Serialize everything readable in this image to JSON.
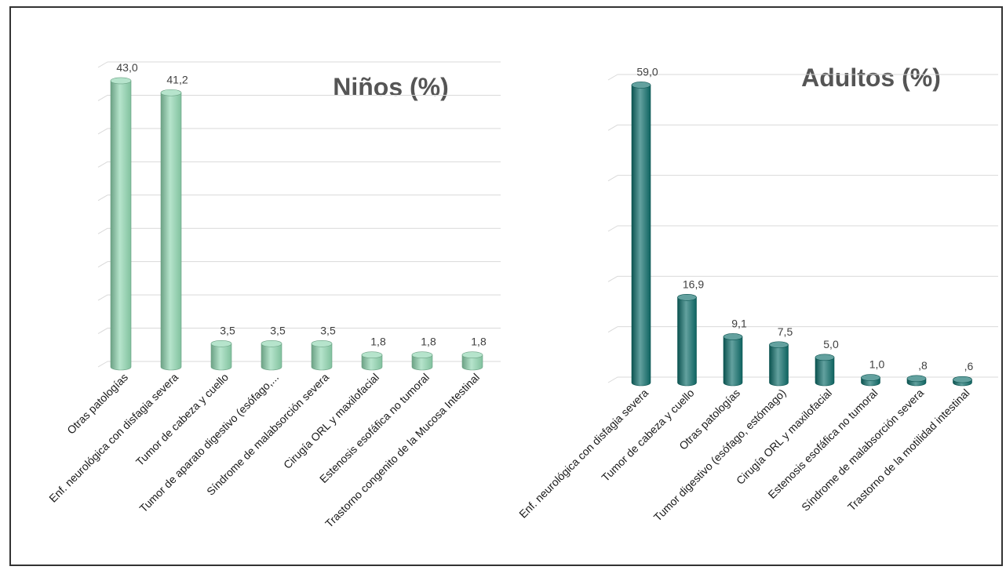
{
  "chart_data": [
    {
      "type": "bar",
      "title": "Niños (%)",
      "categories": [
        "Otras patologías",
        "Enf. neurológica con disfagia severa",
        "Tumor de cabeza y cuello",
        "Tumor de aparato digestivo (esófago,...",
        "Síndrome de malabsorción severa",
        "Cirugía ORL y maxilofacial",
        "Estenosis esofáfica no tumoral",
        "Trastorno congenito de la Mucosa Intestinal"
      ],
      "values": [
        43.0,
        41.2,
        3.5,
        3.5,
        3.5,
        1.8,
        1.8,
        1.8
      ],
      "value_labels": [
        "43,0",
        "41,2",
        "3,5",
        "3,5",
        "3,5",
        "1,8",
        "1,8",
        "1,8"
      ],
      "ylim": [
        0,
        45
      ],
      "grid": true,
      "bar_color": "#8fd6b0",
      "bar_style": "cylinder"
    },
    {
      "type": "bar",
      "title": "Adultos (%)",
      "categories": [
        "Enf. neurológica con disfagia severa",
        "Tumor de cabeza y cuello",
        "Otras patologías",
        "Tumor digestivo (esófago, estómago)",
        "Cirugía ORL y maxilofacial",
        "Estenosis esofáfica no tumoral",
        "Síndrome de malabsorción severa",
        "Trastorno de la motilidad intestinal"
      ],
      "values": [
        59.0,
        16.9,
        9.1,
        7.5,
        5.0,
        1.0,
        0.8,
        0.6
      ],
      "value_labels": [
        "59,0",
        "16,9",
        "9,1",
        "7,5",
        "5,0",
        "1,0",
        ",8",
        ",6"
      ],
      "ylim": [
        0,
        60
      ],
      "grid": true,
      "bar_color": "#0f6e6b",
      "bar_style": "cylinder"
    }
  ]
}
